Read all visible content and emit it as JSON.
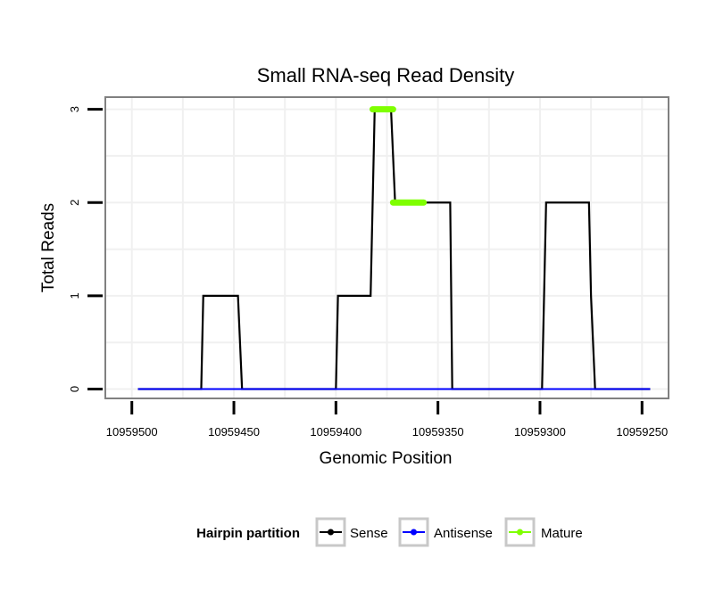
{
  "chart_data": {
    "type": "line",
    "title": "Small RNA-seq Read Density",
    "xlabel": "Genomic Position",
    "ylabel": "Total Reads",
    "xlim": [
      10959513,
      10959237
    ],
    "ylim": [
      -0.1,
      3.13
    ],
    "x_reversed": true,
    "x_ticks": [
      10959500,
      10959450,
      10959400,
      10959350,
      10959300,
      10959250
    ],
    "x_tick_labels": [
      "10959500",
      "10959450",
      "10959400",
      "10959350",
      "10959300",
      "10959250"
    ],
    "y_ticks": [
      0,
      1,
      2,
      3
    ],
    "y_tick_labels": [
      "0",
      "1",
      "2",
      "3"
    ],
    "grid": true,
    "legend": {
      "title": "Hairpin partition",
      "position": "bottom",
      "entries": [
        "Sense",
        "Antisense",
        "Mature"
      ]
    },
    "series": [
      {
        "name": "Sense",
        "color": "#000000",
        "x": [
          10959497,
          10959466,
          10959465,
          10959448,
          10959446,
          10959400,
          10959399,
          10959383,
          10959381,
          10959373,
          10959371,
          10959358,
          10959344,
          10959343,
          10959299,
          10959298,
          10959297,
          10959276,
          10959275,
          10959273,
          10959246
        ],
        "y": [
          0,
          0,
          1,
          1,
          0,
          0,
          1,
          1,
          3,
          3,
          2,
          2,
          2,
          0,
          0,
          1,
          2,
          2,
          1,
          0,
          0
        ]
      },
      {
        "name": "Antisense",
        "color": "#0000ff",
        "x": [
          10959497,
          10959246
        ],
        "y": [
          0,
          0
        ]
      },
      {
        "name": "Mature",
        "color": "#7fff00",
        "segments": [
          {
            "x": [
              10959382,
              10959372
            ],
            "y": [
              3,
              3
            ]
          },
          {
            "x": [
              10959372,
              10959357
            ],
            "y": [
              2,
              2
            ]
          }
        ]
      }
    ]
  }
}
